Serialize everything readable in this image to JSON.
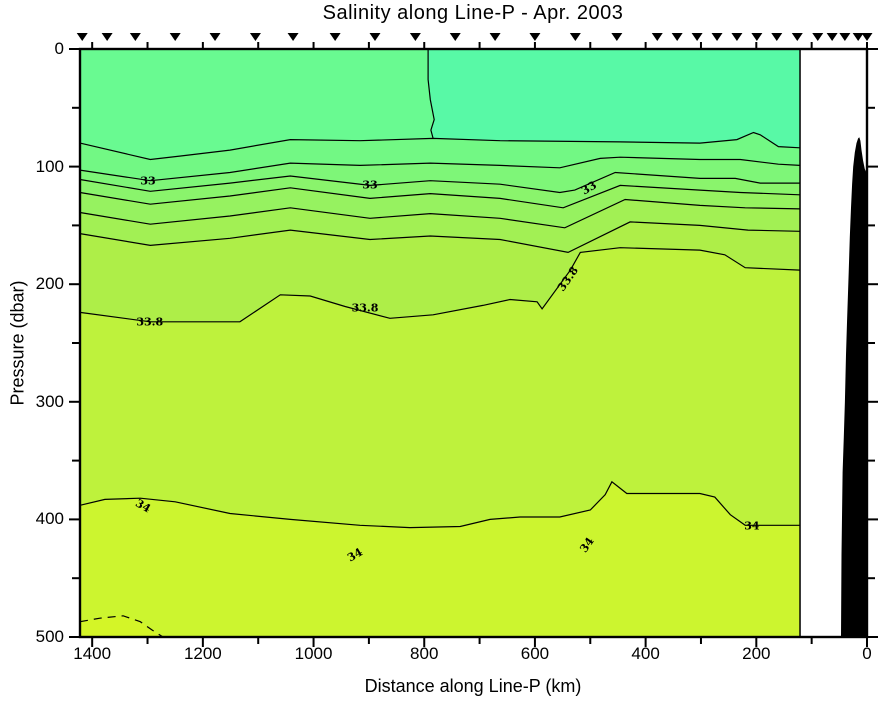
{
  "chart_data": {
    "type": "contour",
    "title": "Salinity along Line-P - Apr. 2003",
    "xlabel": "Distance along Line-P (km)",
    "ylabel": "Pressure (dbar)",
    "x_axis": {
      "km_max": 1422,
      "km_min": 0,
      "direction": "distance decreases to the right (coast at 0 km on right)",
      "major_tick_labels": [
        1400,
        1200,
        1000,
        800,
        600,
        400,
        200,
        0
      ],
      "tick_interval_major": 200,
      "tick_interval_minor": 100
    },
    "y_axis": {
      "dbar_max": 500,
      "dbar_min": 0,
      "direction": "pressure increases downward",
      "major_tick_labels": [
        0,
        100,
        200,
        300,
        400,
        500
      ],
      "tick_interval_major": 100,
      "tick_interval_minor": 50
    },
    "data_extent_km": [
      1422,
      121
    ],
    "contour_interval": 0.2,
    "levels_labeled": [
      33,
      33.8,
      34
    ],
    "station_markers_km": [
      1418,
      1373,
      1322,
      1250,
      1178,
      1105,
      1037,
      961,
      889,
      816,
      744,
      672,
      600,
      527,
      452,
      379,
      343,
      307,
      271,
      235,
      199,
      163,
      126,
      89,
      63,
      40,
      16,
      0
    ],
    "contours": [
      {
        "level": 32.6,
        "style": "solid",
        "points": [
          [
            1422,
            80
          ],
          [
            1295,
            94
          ],
          [
            1240,
            91
          ],
          [
            1151,
            86
          ],
          [
            1042,
            77
          ],
          [
            916,
            78
          ],
          [
            784,
            76
          ],
          [
            663,
            78
          ],
          [
            446,
            79
          ],
          [
            302,
            80
          ],
          [
            235,
            77
          ],
          [
            205,
            71
          ],
          [
            193,
            73
          ],
          [
            160,
            83
          ],
          [
            121,
            84
          ]
        ]
      },
      {
        "level": 32.8,
        "style": "solid",
        "points": [
          [
            1422,
            103
          ],
          [
            1295,
            112
          ],
          [
            1151,
            105
          ],
          [
            1042,
            97
          ],
          [
            916,
            99
          ],
          [
            789,
            97
          ],
          [
            663,
            99
          ],
          [
            555,
            101
          ],
          [
            482,
            93
          ],
          [
            446,
            92
          ],
          [
            302,
            94
          ],
          [
            229,
            94
          ],
          [
            160,
            98
          ],
          [
            121,
            99
          ]
        ]
      },
      {
        "level": 33.0,
        "style": "solid",
        "points": [
          [
            1422,
            111
          ],
          [
            1295,
            121
          ],
          [
            1151,
            114
          ],
          [
            1042,
            108
          ],
          [
            898,
            116
          ],
          [
            789,
            112
          ],
          [
            663,
            115
          ],
          [
            555,
            122
          ],
          [
            528,
            120
          ],
          [
            455,
            105
          ],
          [
            302,
            110
          ],
          [
            238,
            110
          ],
          [
            193,
            114
          ],
          [
            121,
            114
          ]
        ]
      },
      {
        "level": 33.2,
        "style": "solid",
        "points": [
          [
            1422,
            122
          ],
          [
            1295,
            132
          ],
          [
            1151,
            125
          ],
          [
            1042,
            118
          ],
          [
            898,
            127
          ],
          [
            789,
            123
          ],
          [
            663,
            127
          ],
          [
            549,
            135
          ],
          [
            446,
            116
          ],
          [
            302,
            120
          ],
          [
            229,
            122
          ],
          [
            121,
            124
          ]
        ]
      },
      {
        "level": 33.4,
        "style": "solid",
        "points": [
          [
            1422,
            139
          ],
          [
            1295,
            149
          ],
          [
            1151,
            142
          ],
          [
            1042,
            135
          ],
          [
            898,
            144
          ],
          [
            789,
            140
          ],
          [
            663,
            144
          ],
          [
            546,
            152
          ],
          [
            437,
            128
          ],
          [
            302,
            133
          ],
          [
            220,
            135
          ],
          [
            121,
            136
          ]
        ]
      },
      {
        "level": 33.6,
        "style": "solid",
        "points": [
          [
            1422,
            157
          ],
          [
            1295,
            167
          ],
          [
            1151,
            161
          ],
          [
            1042,
            154
          ],
          [
            898,
            162
          ],
          [
            789,
            159
          ],
          [
            663,
            162
          ],
          [
            540,
            173
          ],
          [
            428,
            147
          ],
          [
            302,
            150
          ],
          [
            215,
            154
          ],
          [
            121,
            155
          ]
        ]
      },
      {
        "level": 33.8,
        "style": "solid",
        "points": [
          [
            1422,
            224
          ],
          [
            1295,
            232
          ],
          [
            1133,
            232
          ],
          [
            1060,
            209
          ],
          [
            1006,
            210
          ],
          [
            943,
            219
          ],
          [
            862,
            229
          ],
          [
            784,
            226
          ],
          [
            694,
            218
          ],
          [
            645,
            213
          ],
          [
            596,
            215
          ],
          [
            587,
            221
          ],
          [
            536,
            188
          ],
          [
            518,
            173
          ],
          [
            446,
            169
          ],
          [
            302,
            171
          ],
          [
            257,
            175
          ],
          [
            220,
            186
          ],
          [
            121,
            188
          ]
        ]
      },
      {
        "level": 34.0,
        "style": "solid",
        "points": [
          [
            1422,
            388
          ],
          [
            1377,
            383
          ],
          [
            1313,
            382
          ],
          [
            1250,
            385
          ],
          [
            1151,
            395
          ],
          [
            1042,
            400
          ],
          [
            916,
            405
          ],
          [
            826,
            407
          ],
          [
            735,
            406
          ],
          [
            681,
            400
          ],
          [
            627,
            398
          ],
          [
            555,
            398
          ],
          [
            500,
            392
          ],
          [
            473,
            379
          ],
          [
            461,
            368
          ],
          [
            450,
            372
          ],
          [
            434,
            378
          ],
          [
            302,
            378
          ],
          [
            275,
            381
          ],
          [
            247,
            396
          ],
          [
            220,
            405
          ],
          [
            121,
            405
          ]
        ]
      },
      {
        "level": 34.2,
        "style": "dashed",
        "points": [
          [
            1422,
            487
          ],
          [
            1386,
            484
          ],
          [
            1344,
            482
          ],
          [
            1313,
            487
          ],
          [
            1292,
            494
          ],
          [
            1272,
            500
          ]
        ]
      }
    ],
    "surface_branch_contour": {
      "points": [
        [
          793,
          0
        ],
        [
          793,
          26
        ],
        [
          789,
          43
        ],
        [
          782,
          60
        ],
        [
          788,
          69
        ],
        [
          784,
          76
        ]
      ]
    },
    "top_right_region": [
      [
        793,
        0
      ],
      [
        793,
        26
      ],
      [
        789,
        43
      ],
      [
        782,
        60
      ],
      [
        788,
        69
      ],
      [
        784,
        76
      ],
      [
        663,
        78
      ],
      [
        446,
        79
      ],
      [
        302,
        80
      ],
      [
        235,
        77
      ],
      [
        205,
        71
      ],
      [
        193,
        73
      ],
      [
        160,
        83
      ],
      [
        121,
        84
      ],
      [
        121,
        0
      ]
    ],
    "bathymetry_km_dbar": [
      [
        47,
        500
      ],
      [
        46,
        430
      ],
      [
        44,
        360
      ],
      [
        42,
        330
      ],
      [
        40,
        300
      ],
      [
        38,
        260
      ],
      [
        36,
        230
      ],
      [
        33,
        190
      ],
      [
        31,
        160
      ],
      [
        29,
        135
      ],
      [
        27,
        115
      ],
      [
        25,
        100
      ],
      [
        22,
        88
      ],
      [
        19,
        80
      ],
      [
        16,
        76
      ],
      [
        14,
        75
      ],
      [
        12,
        78
      ],
      [
        10,
        86
      ],
      [
        7,
        95
      ],
      [
        4,
        102
      ],
      [
        0,
        106
      ],
      [
        0,
        500
      ]
    ],
    "contour_labels": [
      {
        "text": "33",
        "km": 1299,
        "dbar": 112,
        "rot": 0
      },
      {
        "text": "33",
        "km": 898,
        "dbar": 116,
        "rot": 0
      },
      {
        "text": "33",
        "km": 503,
        "dbar": 118,
        "rot": -30
      },
      {
        "text": "33.8",
        "km": 1296,
        "dbar": 232,
        "rot": 0
      },
      {
        "text": "33.8",
        "km": 907,
        "dbar": 220,
        "rot": 0
      },
      {
        "text": "33.8",
        "km": 540,
        "dbar": 196,
        "rot": -55
      },
      {
        "text": "34",
        "km": 1308,
        "dbar": 389,
        "rot": 30
      },
      {
        "text": "34",
        "km": 925,
        "dbar": 430,
        "rot": -30
      },
      {
        "text": "34",
        "km": 506,
        "dbar": 422,
        "rot": -55
      },
      {
        "text": "34",
        "km": 208,
        "dbar": 406,
        "rot": 0
      }
    ],
    "colors": {
      "surface_left": "#69FA91",
      "surface_right": "#58F9A6",
      "band_fills": [
        "#72F884",
        "#7EF678",
        "#8AF46C",
        "#96F260",
        "#A2F054",
        "#AEEE48",
        "#BEF23C",
        "#CCF52F",
        "#D4F527"
      ],
      "contour_line": "#000000",
      "land": "#000000",
      "frame": "#000000"
    },
    "legend": "none",
    "grid": "off"
  }
}
